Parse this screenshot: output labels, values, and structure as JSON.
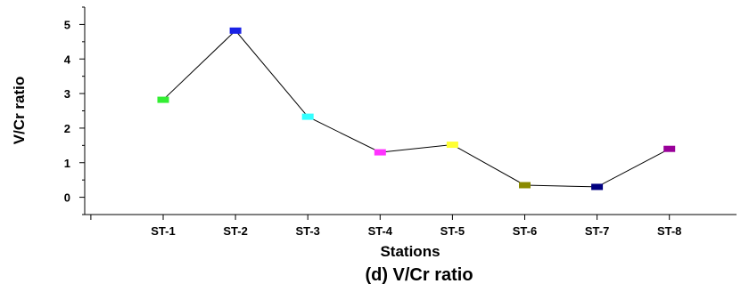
{
  "chart_data": {
    "type": "line",
    "categories": [
      "ST-1",
      "ST-2",
      "ST-3",
      "ST-4",
      "ST-5",
      "ST-6",
      "ST-7",
      "ST-8"
    ],
    "values": [
      2.82,
      4.82,
      2.33,
      1.3,
      1.52,
      0.35,
      0.3,
      1.4
    ],
    "marker_colors": [
      "#33ee33",
      "#1a22e6",
      "#33ffff",
      "#ff33ff",
      "#ffff33",
      "#8a8a00",
      "#000080",
      "#990099"
    ],
    "line_color": "#000000",
    "xlabel": "Stations",
    "ylabel": "V/Cr ratio",
    "caption": "(d) V/Cr ratio",
    "yticks": [
      0,
      1,
      2,
      3,
      4,
      5
    ],
    "ylim": [
      -0.5,
      5.5
    ],
    "grid": false,
    "legend": "none"
  }
}
